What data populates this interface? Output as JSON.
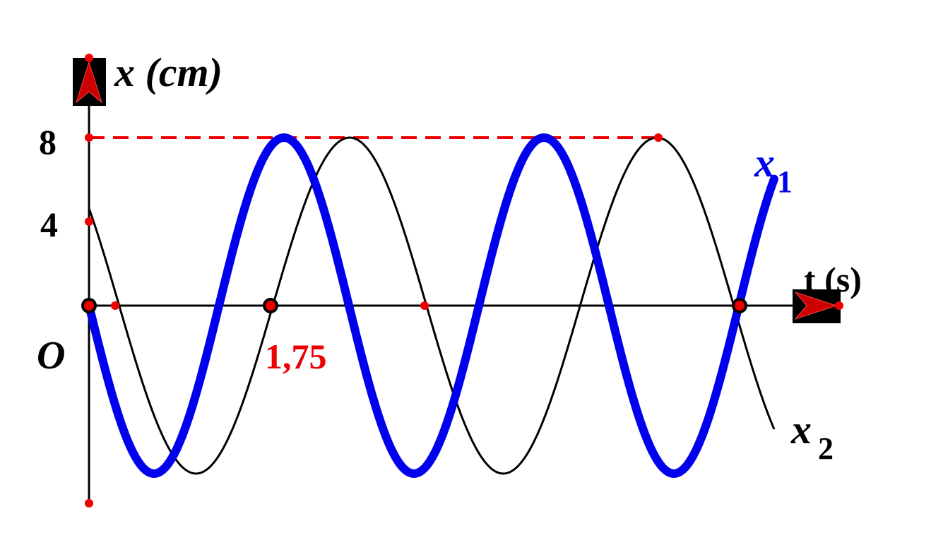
{
  "axes": {
    "y_label": "x (cm)",
    "x_label": "t (s)",
    "origin": "O"
  },
  "ticks": {
    "y_high": "8",
    "y_mid": "4",
    "t_mark": "1,75"
  },
  "curves": {
    "x1": {
      "name": "x",
      "sub": "1"
    },
    "x2": {
      "name": "x",
      "sub": "2"
    }
  }
}
